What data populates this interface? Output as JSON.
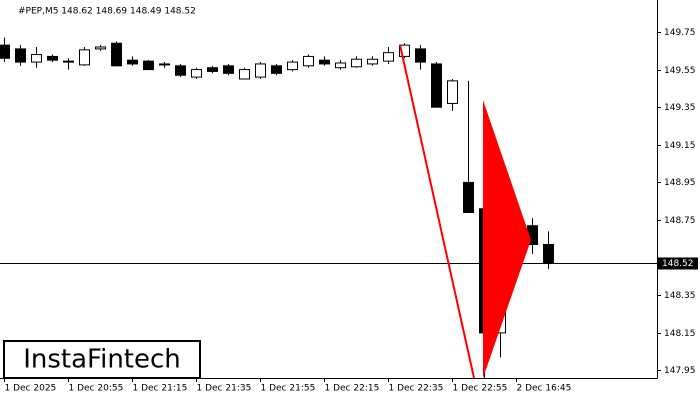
{
  "chart_data": {
    "type": "candlestick",
    "title": "#PEP,M5  148.62 148.69 148.49 148.52",
    "watermark": "InstaFintech",
    "categories": [
      "1 Dec 2025",
      null,
      null,
      null,
      "1 Dec 20:55",
      null,
      null,
      null,
      "1 Dec 21:15",
      null,
      null,
      null,
      "1 Dec 21:35",
      null,
      null,
      null,
      "1 Dec 21:55",
      null,
      null,
      null,
      "1 Dec 22:15",
      null,
      null,
      null,
      "1 Dec 22:35",
      null,
      null,
      null,
      "1 Dec 22:55",
      null,
      null,
      null,
      "2 Dec 16:45",
      null,
      null
    ],
    "open": [
      149.68,
      149.66,
      149.59,
      149.62,
      149.595,
      149.575,
      149.66,
      149.69,
      149.6,
      149.595,
      149.58,
      149.57,
      149.51,
      149.56,
      149.57,
      149.5,
      149.51,
      149.57,
      149.55,
      149.57,
      149.6,
      149.56,
      149.565,
      149.58,
      149.595,
      149.62,
      149.66,
      149.58,
      149.37,
      148.95,
      148.81,
      148.15,
      148.56,
      148.72,
      148.62
    ],
    "high": [
      149.72,
      149.68,
      149.67,
      149.63,
      149.61,
      149.67,
      149.68,
      149.7,
      149.62,
      149.6,
      149.59,
      149.58,
      149.56,
      149.57,
      149.58,
      149.56,
      149.59,
      149.58,
      149.6,
      149.63,
      149.62,
      149.6,
      149.62,
      149.62,
      149.67,
      149.69,
      149.68,
      149.59,
      149.5,
      149.49,
      148.81,
      148.65,
      148.76,
      148.76,
      148.69
    ],
    "low": [
      149.59,
      149.57,
      149.56,
      149.59,
      149.55,
      149.57,
      149.65,
      149.57,
      149.57,
      149.55,
      149.56,
      149.51,
      149.5,
      149.53,
      149.52,
      149.5,
      149.5,
      149.52,
      149.54,
      149.56,
      149.57,
      149.55,
      149.56,
      149.57,
      149.58,
      149.61,
      149.55,
      149.35,
      149.33,
      148.79,
      147.91,
      148.02,
      148.49,
      148.57,
      148.49
    ],
    "close": [
      149.61,
      149.59,
      149.63,
      149.6,
      149.59,
      149.655,
      149.67,
      149.57,
      149.58,
      149.55,
      149.58,
      149.52,
      149.55,
      149.54,
      149.53,
      149.55,
      149.58,
      149.53,
      149.59,
      149.62,
      149.58,
      149.585,
      149.605,
      149.605,
      149.64,
      149.68,
      149.59,
      149.35,
      149.49,
      148.79,
      148.15,
      148.57,
      148.75,
      148.62,
      148.52
    ],
    "up_color": "#ffffff",
    "down_color": "#000000",
    "current_price": 148.52,
    "ylim": [
      147.91,
      149.92
    ],
    "yticks": [
      149.75,
      149.55,
      149.35,
      149.15,
      148.95,
      148.75,
      148.35,
      148.15,
      147.95
    ]
  }
}
